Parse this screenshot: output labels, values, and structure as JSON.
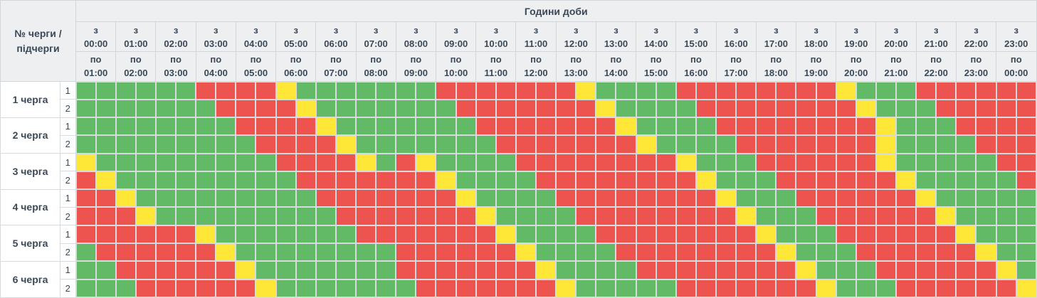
{
  "header": {
    "corner_line1": "№ черги /",
    "corner_line2": "підчерги",
    "title": "Години доби",
    "from_prefix": "з",
    "to_prefix": "по",
    "hours": [
      {
        "from": "00:00",
        "to": "01:00"
      },
      {
        "from": "01:00",
        "to": "02:00"
      },
      {
        "from": "02:00",
        "to": "03:00"
      },
      {
        "from": "03:00",
        "to": "04:00"
      },
      {
        "from": "04:00",
        "to": "05:00"
      },
      {
        "from": "05:00",
        "to": "06:00"
      },
      {
        "from": "06:00",
        "to": "07:00"
      },
      {
        "from": "07:00",
        "to": "08:00"
      },
      {
        "from": "08:00",
        "to": "09:00"
      },
      {
        "from": "09:00",
        "to": "10:00"
      },
      {
        "from": "10:00",
        "to": "11:00"
      },
      {
        "from": "11:00",
        "to": "12:00"
      },
      {
        "from": "12:00",
        "to": "13:00"
      },
      {
        "from": "13:00",
        "to": "14:00"
      },
      {
        "from": "14:00",
        "to": "15:00"
      },
      {
        "from": "15:00",
        "to": "16:00"
      },
      {
        "from": "16:00",
        "to": "17:00"
      },
      {
        "from": "17:00",
        "to": "18:00"
      },
      {
        "from": "18:00",
        "to": "19:00"
      },
      {
        "from": "19:00",
        "to": "20:00"
      },
      {
        "from": "20:00",
        "to": "21:00"
      },
      {
        "from": "21:00",
        "to": "22:00"
      },
      {
        "from": "22:00",
        "to": "23:00"
      },
      {
        "from": "23:00",
        "to": "00:00"
      }
    ]
  },
  "colors": {
    "power_on": "#63ba66",
    "power_off": "#ee544f",
    "possible_outage": "#ffe737",
    "header_bg": "#edeff1",
    "grid_line": "#d8dbde",
    "text": "#3a4857"
  },
  "state_keys": {
    "G": "power_on",
    "R": "power_off",
    "Y": "possible_outage"
  },
  "slot_minutes": 30,
  "queues": [
    {
      "name": "1 черга",
      "subqueues": [
        {
          "number": "1",
          "slots": "GGGGGGRRRRYGGGGGGGRRRRRRRYGGGGRRRRRRRRYGGGRRRRRR"
        },
        {
          "number": "2",
          "slots": "GGGGGGGRRRRYGGGGGGGRRRRRRRYGGGGRRRRRRRRYGGGRRRRR"
        }
      ]
    },
    {
      "name": "2 черга",
      "subqueues": [
        {
          "number": "1",
          "slots": "GGGGGGGGRRRRYGGGGGGGRRRRRRRYGGGGRRRRRRRRYGGGRRRR"
        },
        {
          "number": "2",
          "slots": "GGGGGGGGGRRRRYGGGGGGGRRRRRRRYGGGGRRRRRRRYGGGGRRR"
        }
      ]
    },
    {
      "name": "3 черга",
      "subqueues": [
        {
          "number": "1",
          "slots": "YGGGGGGGGGRRRRYGRYGGGGRRRRRRRRYGGGRRRRRRYGGGGGRR"
        },
        {
          "number": "2",
          "slots": "RYGGGGGGGGGRRRRRRRYGGGGRRRRRRRRYGGGRRRRRRYGGGGGR"
        }
      ]
    },
    {
      "name": "4 черга",
      "subqueues": [
        {
          "number": "1",
          "slots": "RRYGGGGGGGGGRRRRRRRYGGGGRRRRRRRRYGGGRRRRRRYGGGGG"
        },
        {
          "number": "2",
          "slots": "RRRYGGGGGGGGGRRRRRRRYGGGGRRRRRRRRYGGGRRRRRRYGGGG"
        }
      ]
    },
    {
      "name": "5 черга",
      "subqueues": [
        {
          "number": "1",
          "slots": "RRRRRRYGGGGGGGRRRRRRRYGGGGRRRRRRRRYGGGRRRRRRYGGG"
        },
        {
          "number": "2",
          "slots": "GRRRRRRYGGGGGGGGRRRRRRYGGGGRRRRRRRRYGGGRRRRRRYGG"
        }
      ]
    },
    {
      "name": "6 черга",
      "subqueues": [
        {
          "number": "1",
          "slots": "GGRRRRRRYGGGGGGGRRRRRRRYGGGGRRRRRRRRYGGGRRRRRRYG"
        },
        {
          "number": "2",
          "slots": "GGGRRRRRRYGGGGGGGRRRRRRRYGGGGGRRRRRRRYGGGRRRRRRY"
        }
      ]
    }
  ]
}
